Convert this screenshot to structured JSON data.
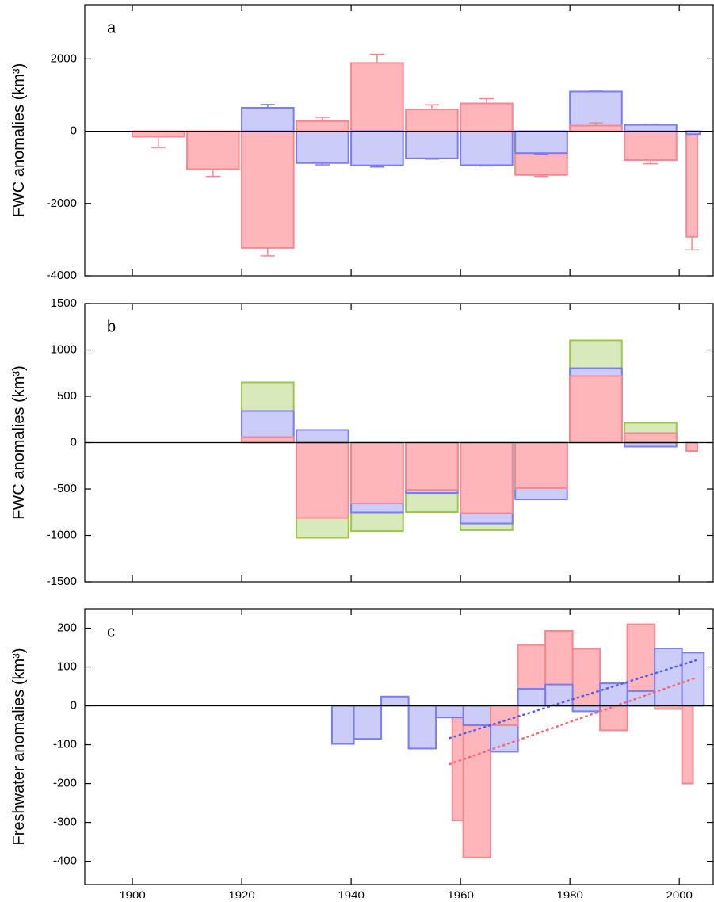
{
  "chart_data": [
    {
      "type": "bar",
      "label": "a",
      "ylabel": "FWC anomalies (km³)",
      "ylim": [
        -4000,
        3500
      ],
      "yticks": [
        -4000,
        -2000,
        0,
        2000
      ],
      "series": [
        {
          "color": "#f5888f",
          "fill": "#ffb6bb",
          "x": [
            1900,
            1910,
            1920,
            1930,
            1940,
            1950,
            1960,
            1970,
            1980,
            1990,
            2001.3
          ],
          "x_end": [
            1909.5,
            1919.5,
            1929.5,
            1939.5,
            1949.5,
            1959.5,
            1969.5,
            1979.5,
            1989.5,
            1999.5,
            2003.3
          ],
          "values": [
            -150,
            -1050,
            -3230,
            280,
            1890,
            605,
            770,
            -1210,
            155,
            -800,
            -2920
          ],
          "errors": [
            300,
            200,
            220,
            105,
            240,
            125,
            130,
            40,
            75,
            100,
            365
          ]
        },
        {
          "color": "#7b7bf5",
          "fill": "#ccccf9",
          "x": [
            1920,
            1930,
            1940,
            1950,
            1960,
            1970,
            1980,
            1990,
            2001.3
          ],
          "x_end": [
            1929.5,
            1939.5,
            1949.5,
            1959.5,
            1969.5,
            1979.5,
            1989.5,
            1999.5,
            2003.8
          ],
          "values": [
            650,
            -880,
            -945,
            -750,
            -940,
            -605,
            1100,
            175,
            -80
          ],
          "errors": [
            90,
            50,
            45,
            20,
            20,
            25,
            10,
            10,
            null
          ]
        }
      ]
    },
    {
      "type": "bar",
      "label": "b",
      "ylabel": "FWC anomalies (km³)",
      "ylim": [
        -1500,
        1500
      ],
      "yticks": [
        -1500,
        -1000,
        -500,
        0,
        500,
        1000,
        1500
      ],
      "series": [
        {
          "color": "#9cc84a",
          "fill": "#d8eabb",
          "x": [
            1920,
            1930,
            1940,
            1950,
            1960,
            1970,
            1980,
            1990
          ],
          "x_end": [
            1929.5,
            1939.5,
            1949.5,
            1959.5,
            1969.5,
            1979.5,
            1989.5,
            1999.5
          ],
          "values": [
            650,
            -1026,
            -953,
            -748,
            -944,
            null,
            1103,
            214
          ]
        },
        {
          "color": "#7b7bf5",
          "fill": "#ccccf9",
          "x": [
            1920,
            1930,
            1940,
            1950,
            1960,
            1970,
            1980,
            1990
          ],
          "x_end": [
            1929.5,
            1939.5,
            1949.5,
            1959.5,
            1969.5,
            1979.5,
            1989.5,
            1999.5
          ],
          "values": [
            342,
            137,
            -752,
            -543,
            -872,
            -611,
            803,
            -43
          ]
        },
        {
          "color": "#f5888f",
          "fill": "#ffb6bb",
          "x": [
            1920,
            1930,
            1940,
            1950,
            1960,
            1970,
            1980,
            1990,
            2001.3
          ],
          "x_end": [
            1929.5,
            1939.5,
            1949.5,
            1959.5,
            1969.5,
            1979.5,
            1989.5,
            1999.5,
            2003.3
          ],
          "values": [
            60,
            -812,
            -654,
            -509,
            -761,
            -491,
            718,
            103,
            -90
          ]
        }
      ]
    },
    {
      "type": "bar",
      "label": "c",
      "ylabel": "Freshwater anomalies (km³)",
      "ylim": [
        -460,
        250
      ],
      "yticks": [
        -400,
        -300,
        -200,
        -100,
        0,
        100,
        200
      ],
      "xlim": [
        1891.3,
        2006.2
      ],
      "xticks": [
        1900,
        1920,
        1940,
        1960,
        1980,
        2000
      ],
      "series": [
        {
          "color": "#7b7bf5",
          "fill": "#ccccf9",
          "x": [
            1936.5,
            1940.5,
            1945.5,
            1950.5,
            1955.5,
            1960.5,
            1965.5,
            1970.5,
            1975.5,
            1980.5,
            1985.5,
            1990.5,
            1995.5,
            2000.5
          ],
          "x_end": [
            1940.5,
            1945.5,
            1950.5,
            1955.5,
            1960.5,
            1965.5,
            1970.5,
            1975.5,
            1980.5,
            1985.5,
            1990.5,
            1995.5,
            2000.5,
            2004.5
          ],
          "values": [
            -98,
            -85,
            24,
            -110,
            -30,
            -50,
            -118,
            44,
            55,
            -14,
            58,
            38,
            148,
            137
          ]
        },
        {
          "color": "#f5888f",
          "fill": "#ffb6bb",
          "x": [
            1958.5,
            1960.5,
            1965.5,
            1970.5,
            1975.5,
            1980.5,
            1985.5,
            1990.5,
            1995.5,
            2000.5
          ],
          "x_end": [
            1960.5,
            1965.5,
            1970.5,
            1975.5,
            1980.5,
            1985.5,
            1990.5,
            1995.5,
            2000.5,
            2002.5
          ],
          "values": [
            -295,
            -390,
            -50,
            157,
            193,
            147,
            -63,
            210,
            -8,
            -200
          ]
        }
      ],
      "trends": [
        {
          "color": "#5a5af0",
          "x": [
            1958,
            2003
          ],
          "values": [
            -83,
            117
          ]
        },
        {
          "color": "#f06a72",
          "x": [
            1958,
            2003
          ],
          "values": [
            -150,
            72
          ]
        }
      ]
    }
  ]
}
